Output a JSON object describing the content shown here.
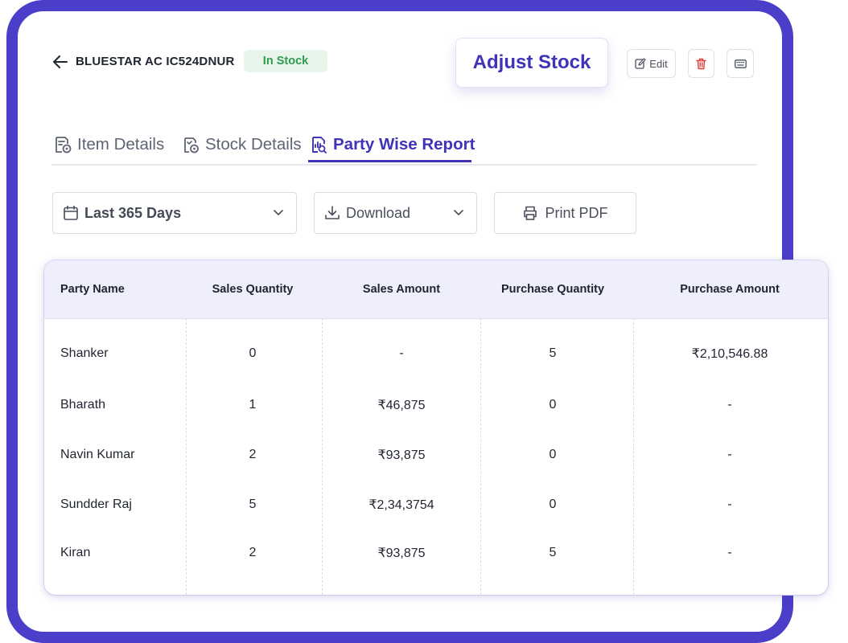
{
  "header": {
    "title": "BLUESTAR AC IC524DNUR",
    "stock_status": "In Stock",
    "adjust_label": "Adjust Stock",
    "edit_label": "Edit"
  },
  "tabs": [
    {
      "label": "Item Details",
      "active": false
    },
    {
      "label": "Stock Details",
      "active": false
    },
    {
      "label": "Party Wise Report",
      "active": true
    }
  ],
  "filters": {
    "date_range": "Last 365 Days",
    "download_label": "Download",
    "print_label": "Print PDF"
  },
  "table": {
    "columns": [
      "Party Name",
      "Sales Quantity",
      "Sales Amount",
      "Purchase Quantity",
      "Purchase Amount"
    ],
    "rows": [
      [
        "Shanker",
        "0",
        "-",
        "5",
        "₹2,10,546.88"
      ],
      [
        "Bharath",
        "1",
        "₹46,875",
        "0",
        "-"
      ],
      [
        "Navin Kumar",
        "2",
        "₹93,875",
        "0",
        "-"
      ],
      [
        "Sundder Raj",
        "5",
        "₹2,34,3754",
        "0",
        "-"
      ],
      [
        "Kiran",
        "2",
        "₹93,875",
        "5",
        "-"
      ]
    ]
  },
  "colors": {
    "accent": "#3f33b8",
    "frame": "#4b3ec9",
    "in_stock_bg": "#e7f5ea",
    "in_stock_text": "#2e9b4f",
    "delete": "#e03a3a",
    "table_header_bg": "#efeefb"
  },
  "icons": {
    "back": "arrow-left-icon",
    "edit": "edit-icon",
    "delete": "trash-icon",
    "keyboard": "keyboard-icon",
    "item_details": "item-details-icon",
    "stock_details": "stock-details-icon",
    "party_report": "report-icon",
    "calendar": "calendar-icon",
    "download": "download-icon",
    "print": "printer-icon",
    "chevron": "chevron-down-icon"
  }
}
